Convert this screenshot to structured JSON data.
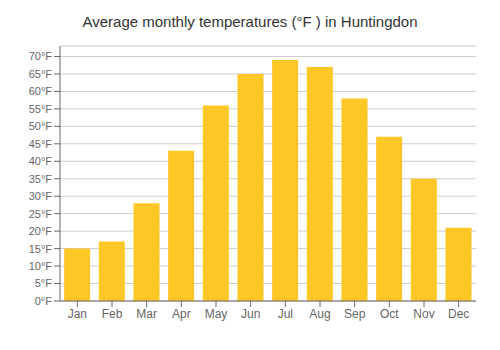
{
  "chart_data": {
    "type": "bar",
    "title": "Average monthly temperatures (°F ) in Huntingdon",
    "categories": [
      "Jan",
      "Feb",
      "Mar",
      "Apr",
      "May",
      "Jun",
      "Jul",
      "Aug",
      "Sep",
      "Oct",
      "Nov",
      "Dec"
    ],
    "values": [
      15,
      17,
      28,
      43,
      56,
      65,
      69,
      67,
      58,
      47,
      35,
      21
    ],
    "color": "#FFC726",
    "ylim": [
      0,
      73
    ],
    "yticks": [
      {
        "value": 0,
        "label": "0°F"
      },
      {
        "value": 5,
        "label": "5°F"
      },
      {
        "value": 10,
        "label": "10°F"
      },
      {
        "value": 15,
        "label": "15°F"
      },
      {
        "value": 20,
        "label": "20°F"
      },
      {
        "value": 25,
        "label": "25°F"
      },
      {
        "value": 30,
        "label": "30°F"
      },
      {
        "value": 35,
        "label": "35°F"
      },
      {
        "value": 40,
        "label": "40°F"
      },
      {
        "value": 45,
        "label": "45°F"
      },
      {
        "value": 50,
        "label": "50°F"
      },
      {
        "value": 55,
        "label": "55°F"
      },
      {
        "value": 60,
        "label": "60°F"
      },
      {
        "value": 65,
        "label": "65°F"
      },
      {
        "value": 70,
        "label": "70°F"
      }
    ],
    "grid": true
  }
}
